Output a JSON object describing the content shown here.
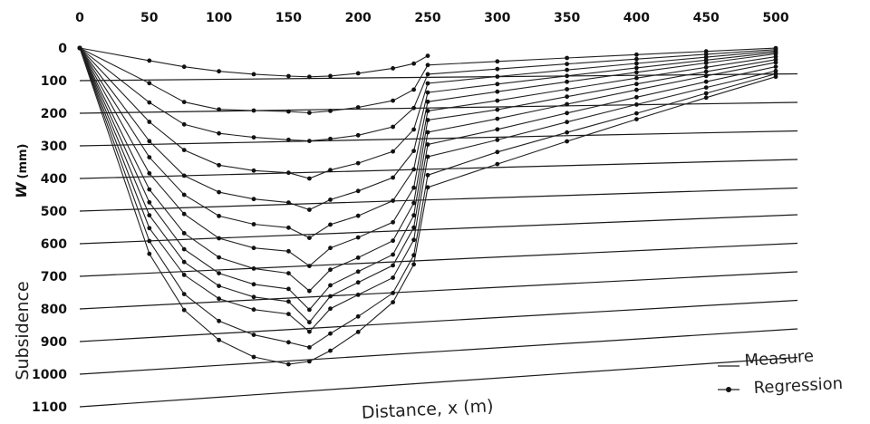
{
  "chart_data": {
    "type": "line",
    "title": "",
    "xlabel": "Distance, x (m)",
    "ylabel_prefix": "Subsidence",
    "ylabel_symbol": "W",
    "ylabel_unit": "(mm)",
    "xlim": [
      0,
      500
    ],
    "ylim": [
      0,
      1100
    ],
    "x_ticks": [
      0,
      50,
      100,
      150,
      200,
      250,
      300,
      350,
      400,
      450,
      500
    ],
    "y_ticks": [
      0,
      100,
      200,
      300,
      400,
      500,
      600,
      700,
      800,
      900,
      1000,
      1100
    ],
    "grid": "horizontal",
    "legend": {
      "position": "bottom-right",
      "entries": [
        {
          "label": "Measure",
          "marker": "line"
        },
        {
          "label": "Regression",
          "marker": "dot"
        }
      ]
    },
    "series": [
      {
        "x": [
          0,
          50,
          75,
          100,
          125,
          150,
          165,
          180,
          200,
          225,
          240,
          250
        ],
        "y": [
          0,
          40,
          60,
          75,
          85,
          92,
          95,
          93,
          85,
          70,
          55,
          30
        ]
      },
      {
        "x": [
          0,
          50,
          75,
          100,
          125,
          150,
          165,
          180,
          200,
          225,
          240,
          250,
          300,
          350,
          400,
          450,
          500
        ],
        "y": [
          0,
          110,
          170,
          195,
          200,
          205,
          210,
          205,
          195,
          175,
          140,
          60,
          50,
          40,
          30,
          20,
          10
        ]
      },
      {
        "x": [
          0,
          50,
          75,
          100,
          125,
          150,
          165,
          180,
          200,
          225,
          240,
          250,
          300,
          350,
          400,
          450,
          500
        ],
        "y": [
          0,
          170,
          240,
          270,
          285,
          295,
          300,
          295,
          285,
          260,
          200,
          90,
          75,
          60,
          45,
          30,
          15
        ]
      },
      {
        "x": [
          0,
          50,
          75,
          100,
          125,
          150,
          165,
          180,
          200,
          225,
          240,
          250,
          300,
          350,
          400,
          450,
          500
        ],
        "y": [
          0,
          230,
          320,
          370,
          390,
          400,
          420,
          395,
          375,
          340,
          270,
          120,
          100,
          80,
          60,
          40,
          20
        ]
      },
      {
        "x": [
          0,
          50,
          75,
          100,
          125,
          150,
          165,
          180,
          200,
          225,
          240,
          250,
          300,
          350,
          400,
          450,
          500
        ],
        "y": [
          0,
          290,
          400,
          455,
          480,
          495,
          520,
          490,
          465,
          425,
          340,
          150,
          125,
          100,
          75,
          50,
          25
        ]
      },
      {
        "x": [
          0,
          50,
          75,
          100,
          125,
          150,
          165,
          180,
          200,
          225,
          240,
          250,
          300,
          350,
          400,
          450,
          500
        ],
        "y": [
          0,
          340,
          460,
          530,
          560,
          575,
          610,
          570,
          545,
          500,
          400,
          180,
          150,
          120,
          90,
          60,
          30
        ]
      },
      {
        "x": [
          0,
          50,
          75,
          100,
          125,
          150,
          165,
          180,
          200,
          225,
          240,
          250,
          300,
          350,
          400,
          450,
          500
        ],
        "y": [
          0,
          390,
          520,
          600,
          635,
          650,
          700,
          645,
          615,
          570,
          460,
          210,
          180,
          145,
          110,
          75,
          40
        ]
      },
      {
        "x": [
          0,
          50,
          75,
          100,
          125,
          150,
          165,
          180,
          200,
          225,
          240,
          250,
          300,
          350,
          400,
          450,
          500
        ],
        "y": [
          0,
          440,
          580,
          660,
          700,
          720,
          780,
          715,
          680,
          630,
          510,
          240,
          210,
          170,
          130,
          90,
          50
        ]
      },
      {
        "x": [
          0,
          50,
          75,
          100,
          125,
          150,
          165,
          180,
          200,
          225,
          240,
          250,
          300,
          350,
          400,
          450,
          500
        ],
        "y": [
          0,
          480,
          630,
          710,
          750,
          770,
          840,
          765,
          725,
          675,
          550,
          280,
          240,
          195,
          150,
          105,
          60
        ]
      },
      {
        "x": [
          0,
          50,
          75,
          100,
          125,
          150,
          165,
          180,
          200,
          225,
          240,
          250,
          300,
          350,
          400,
          450,
          500
        ],
        "y": [
          0,
          520,
          670,
          750,
          790,
          810,
          880,
          800,
          760,
          710,
          590,
          320,
          275,
          225,
          175,
          125,
          75
        ]
      },
      {
        "x": [
          0,
          50,
          75,
          100,
          125,
          150,
          165,
          180,
          200,
          225,
          240,
          250,
          300,
          350,
          400,
          450,
          500
        ],
        "y": [
          0,
          560,
          710,
          790,
          830,
          850,
          910,
          840,
          800,
          750,
          630,
          360,
          310,
          255,
          200,
          145,
          90
        ]
      },
      {
        "x": [
          0,
          50,
          75,
          100,
          125,
          150,
          165,
          180,
          200,
          225,
          240,
          250,
          300,
          350,
          400,
          450,
          500
        ],
        "y": [
          0,
          600,
          770,
          860,
          910,
          940,
          960,
          920,
          870,
          800,
          680,
          420,
          350,
          290,
          230,
          165,
          100
        ]
      },
      {
        "x": [
          0,
          50,
          75,
          100,
          125,
          150,
          165,
          180,
          200,
          225,
          240,
          250,
          300,
          350,
          400,
          450,
          500
        ],
        "y": [
          0,
          640,
          820,
          920,
          980,
          1010,
          1005,
          975,
          920,
          830,
          710,
          460,
          390,
          320,
          250,
          180,
          110
        ]
      }
    ]
  }
}
